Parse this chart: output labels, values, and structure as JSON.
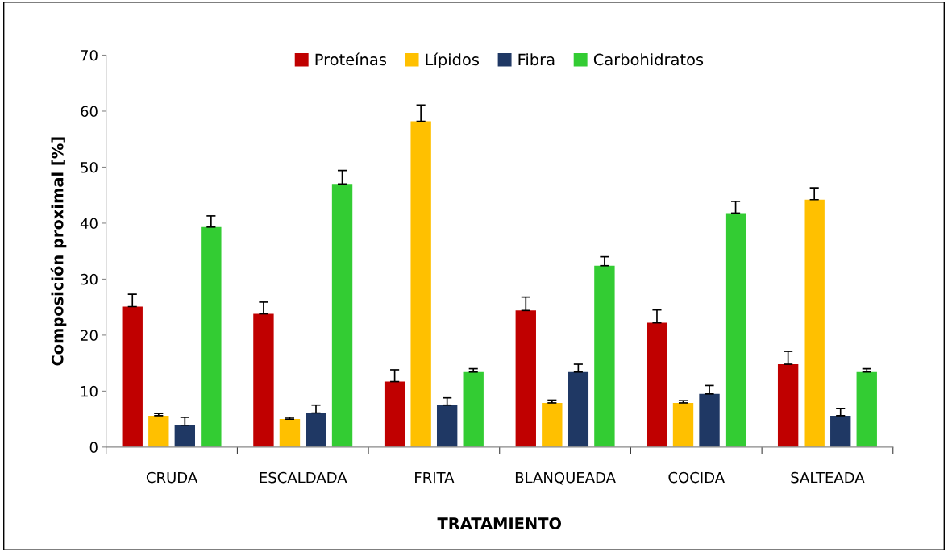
{
  "chart_data": {
    "type": "bar",
    "xlabel": "TRATAMIENTO",
    "ylabel": "Composición proximal [%]",
    "categories": [
      "CRUDA",
      "ESCALDADA",
      "FRITA",
      "BLANQUEADA",
      "COCIDA",
      "SALTEADA"
    ],
    "series": [
      {
        "name": "Proteínas",
        "color": "#c00000",
        "values": [
          25.1,
          23.8,
          11.7,
          24.4,
          22.2,
          14.8
        ],
        "errors": [
          [
            25.1,
            27.3
          ],
          [
            23.8,
            25.9
          ],
          [
            11.7,
            13.8
          ],
          [
            24.4,
            26.8
          ],
          [
            22.2,
            24.5
          ],
          [
            14.8,
            17.1
          ]
        ]
      },
      {
        "name": "Lípidos",
        "color": "#ffc000",
        "values": [
          5.6,
          5.0,
          58.2,
          7.9,
          7.9,
          44.2
        ],
        "errors": [
          [
            5.6,
            6.0
          ],
          [
            5.0,
            5.3
          ],
          [
            58.2,
            61.1
          ],
          [
            7.9,
            8.4
          ],
          [
            7.9,
            8.3
          ],
          [
            44.2,
            46.3
          ]
        ]
      },
      {
        "name": "Fibra",
        "color": "#1f3864",
        "values": [
          3.9,
          6.1,
          7.5,
          13.4,
          9.5,
          5.6
        ],
        "errors": [
          [
            3.9,
            5.3
          ],
          [
            6.1,
            7.5
          ],
          [
            7.5,
            8.8
          ],
          [
            13.4,
            14.8
          ],
          [
            9.5,
            11.0
          ],
          [
            5.6,
            6.9
          ]
        ]
      },
      {
        "name": "Carbohidratos",
        "color": "#33cc33",
        "values": [
          39.3,
          47.0,
          13.4,
          32.4,
          41.8,
          13.4
        ],
        "errors": [
          [
            39.3,
            41.3
          ],
          [
            47.0,
            49.4
          ],
          [
            13.4,
            14.0
          ],
          [
            32.4,
            34.0
          ],
          [
            41.8,
            43.9
          ],
          [
            13.4,
            14.0
          ]
        ]
      }
    ],
    "ylim": [
      0,
      70
    ],
    "yticks": [
      0,
      10,
      20,
      30,
      40,
      50,
      60,
      70
    ],
    "grid": false,
    "legend": "top"
  }
}
